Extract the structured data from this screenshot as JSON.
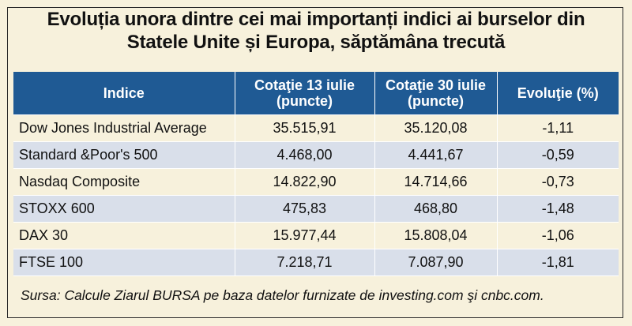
{
  "title": {
    "line1": "Evoluția unora dintre cei mai importanți indici ai burselor din",
    "line2": "Statele Unite și Europa, săptămâna trecută"
  },
  "table": {
    "headers": [
      {
        "line1": "Indice",
        "line2": ""
      },
      {
        "line1": "Cotaţie 13 iulie",
        "line2": "(puncte)"
      },
      {
        "line1": "Cotaţie 30 iulie",
        "line2": "(puncte)"
      },
      {
        "line1": "Evoluţie (%)",
        "line2": ""
      }
    ],
    "rows": [
      [
        "Dow Jones Industrial Average",
        "35.515,91",
        "35.120,08",
        "-1,11"
      ],
      [
        "Standard &Poor's 500",
        "4.468,00",
        "4.441,67",
        "-0,59"
      ],
      [
        "Nasdaq Composite",
        "14.822,90",
        "14.714,66",
        "-0,73"
      ],
      [
        "STOXX 600",
        "475,83",
        "468,80",
        "-1,48"
      ],
      [
        "DAX 30",
        "15.977,44",
        "15.808,04",
        "-1,06"
      ],
      [
        "FTSE 100",
        "7.218,71",
        "7.087,90",
        "-1,81"
      ]
    ]
  },
  "source": "Sursa: Calcule Ziarul BURSA pe baza datelor furnizate de investing.com şi cnbc.com.",
  "colors": {
    "header_bg": "#1f5a94",
    "row_alt_bg": "#d9dfea",
    "page_bg": "#f7f1dc"
  }
}
